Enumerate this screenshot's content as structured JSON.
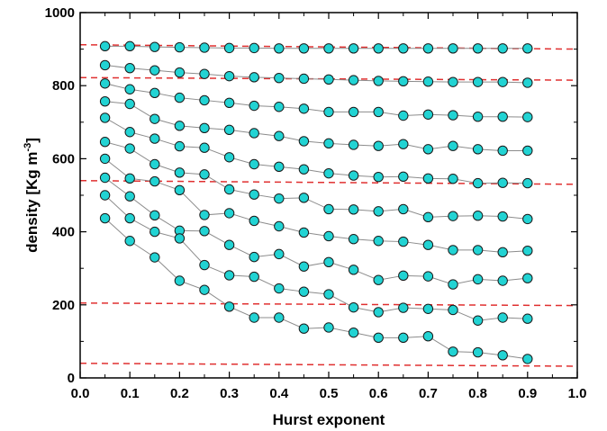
{
  "chart_data": {
    "type": "scatter",
    "title": "",
    "xlabel": "Hurst exponent",
    "ylabel": {
      "main": "density [Kg m",
      "sup": "-3",
      "close": "]"
    },
    "xlim": [
      0.0,
      1.0
    ],
    "ylim": [
      0,
      1000
    ],
    "x_ticks": [
      0.0,
      0.1,
      0.2,
      0.3,
      0.4,
      0.5,
      0.6,
      0.7,
      0.8,
      0.9,
      1.0
    ],
    "x_tick_labels": [
      "0.0",
      "0.1",
      "0.2",
      "0.3",
      "0.4",
      "0.5",
      "0.6",
      "0.7",
      "0.8",
      "0.9",
      "1.0"
    ],
    "y_ticks": [
      0,
      200,
      400,
      600,
      800,
      1000
    ],
    "y_tick_labels": [
      "0",
      "200",
      "400",
      "600",
      "800",
      "1000"
    ],
    "grid": false,
    "legend": "none",
    "colors": {
      "marker_fill": "#22d3d3",
      "marker_stroke": "#1a1a1a",
      "connector": "#8c8c8c",
      "reference": "#e03030",
      "axes": "#000000"
    },
    "x": [
      0.05,
      0.1,
      0.15,
      0.2,
      0.25,
      0.3,
      0.35,
      0.4,
      0.45,
      0.5,
      0.55,
      0.6,
      0.65,
      0.7,
      0.75,
      0.8,
      0.85,
      0.9
    ],
    "series": [
      {
        "values": [
          908,
          908,
          906,
          905,
          904,
          903,
          903,
          902,
          902,
          902,
          902,
          902,
          902,
          902,
          902,
          902,
          902,
          902
        ]
      },
      {
        "values": [
          856,
          848,
          842,
          836,
          832,
          826,
          823,
          821,
          819,
          817,
          815,
          813,
          812,
          811,
          810,
          810,
          810,
          808
        ]
      },
      {
        "values": [
          806,
          790,
          780,
          767,
          760,
          753,
          745,
          742,
          737,
          728,
          728,
          728,
          718,
          721,
          719,
          715,
          715,
          714
        ]
      },
      {
        "values": [
          757,
          750,
          709,
          690,
          684,
          679,
          670,
          662,
          648,
          642,
          638,
          635,
          640,
          626,
          635,
          626,
          622,
          622
        ]
      },
      {
        "values": [
          712,
          673,
          655,
          634,
          630,
          604,
          585,
          578,
          571,
          560,
          554,
          550,
          551,
          546,
          545,
          533,
          534,
          533
        ]
      },
      {
        "values": [
          646,
          628,
          585,
          562,
          557,
          516,
          502,
          491,
          493,
          462,
          461,
          456,
          462,
          440,
          443,
          444,
          442,
          435
        ]
      },
      {
        "values": [
          600,
          546,
          538,
          514,
          446,
          451,
          430,
          415,
          398,
          388,
          380,
          375,
          373,
          364,
          350,
          350,
          344,
          348
        ]
      },
      {
        "values": [
          548,
          497,
          445,
          403,
          402,
          364,
          331,
          339,
          305,
          317,
          296,
          268,
          280,
          278,
          256,
          270,
          266,
          273
        ]
      },
      {
        "values": [
          500,
          437,
          400,
          382,
          309,
          281,
          277,
          245,
          236,
          229,
          193,
          180,
          192,
          189,
          186,
          157,
          165,
          162
        ]
      },
      {
        "values": [
          437,
          375,
          330,
          266,
          241,
          195,
          165,
          165,
          135,
          138,
          124,
          110,
          110,
          114,
          72,
          70,
          62,
          52
        ]
      }
    ],
    "reference_lines": [
      {
        "x": [
          0.0,
          1.0
        ],
        "y": [
          912,
          900
        ]
      },
      {
        "x": [
          0.0,
          1.0
        ],
        "y": [
          822,
          815
        ]
      },
      {
        "x": [
          0.0,
          1.0
        ],
        "y": [
          540,
          530
        ]
      },
      {
        "x": [
          0.0,
          1.0
        ],
        "y": [
          205,
          198
        ]
      },
      {
        "x": [
          0.0,
          1.0
        ],
        "y": [
          40,
          32
        ]
      }
    ]
  }
}
